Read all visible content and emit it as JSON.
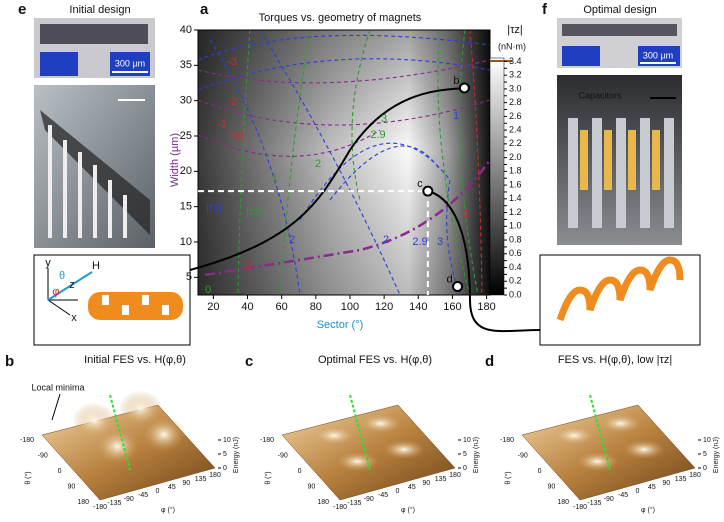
{
  "panel_labels": [
    "e",
    "a",
    "f",
    "b",
    "c",
    "d"
  ],
  "panel_e": {
    "title": "Initial design",
    "scale": "300 µm"
  },
  "panel_f": {
    "title": "Optimal design",
    "scale": "300 µm",
    "callout": "Capacitors"
  },
  "inset": {
    "axes": [
      "y",
      "θ",
      "H",
      "z",
      "φ",
      "x"
    ]
  },
  "chart_data": {
    "type": "contour",
    "title": "Torques vs. geometry of magnets",
    "xlabel": "Sector (°)",
    "ylabel": "Width (µm)",
    "xlim": [
      11,
      182
    ],
    "ylim": [
      2.5,
      40
    ],
    "xticks": [
      20,
      40,
      60,
      80,
      100,
      120,
      140,
      160,
      180
    ],
    "yticks": [
      5,
      10,
      15,
      20,
      25,
      30,
      35,
      40
    ],
    "colorbar": {
      "label": "|τz|",
      "unit": "(nN·m)",
      "lim": [
        0,
        3.45
      ],
      "ticks": [
        {
          "value": 0,
          "label": "0.0"
        },
        0.1,
        0.2,
        0.3,
        0.4,
        0.5,
        0.6,
        0.7,
        0.8,
        0.9,
        {
          "value": 1,
          "label": "1.0"
        },
        1.1,
        1.2,
        1.3,
        1.4,
        1.5,
        1.6,
        1.7,
        1.8,
        1.9,
        {
          "value": 2,
          "label": "2.0"
        },
        2.1,
        2.2,
        2.3,
        2.4,
        2.5,
        2.6,
        2.7,
        2.8,
        2.9,
        {
          "value": 3,
          "label": "3.0"
        },
        3.1,
        3.2,
        3.3,
        3.4
      ]
    },
    "torque_labels": [
      {
        "name": "|τx|",
        "color": "#2b3fd9"
      },
      {
        "name": "|τy|",
        "color": "#d12a2a"
      },
      {
        "name": "|τz|",
        "color": "#2f9a2f"
      }
    ],
    "contour_labels": [
      {
        "value": -3,
        "color": "#d12a2a"
      },
      {
        "value": -2,
        "color": "#d12a2a"
      },
      {
        "value": -1,
        "color": "#d12a2a"
      },
      {
        "value": 0,
        "color": "#d12a2a"
      },
      {
        "value": 1,
        "color": "#d12a2a"
      },
      {
        "value": 3,
        "color": "#2f9a2f"
      },
      {
        "value": 2.9,
        "color": "#2f9a2f"
      },
      {
        "value": 2,
        "color": "#2f9a2f"
      },
      {
        "value": 1,
        "color": "#2f9a2f"
      },
      {
        "value": 0,
        "color": "#2f9a2f"
      },
      {
        "value": 2,
        "color": "#2b3fd9"
      },
      {
        "value": 2,
        "color": "#2b3fd9"
      },
      {
        "value": 2.9,
        "color": "#2b3fd9"
      },
      {
        "value": 3,
        "color": "#2b3fd9"
      },
      {
        "value": 1,
        "color": "#2b3fd9"
      }
    ],
    "points": [
      {
        "label": "b",
        "x": 167,
        "y": 31.8
      },
      {
        "label": "c",
        "x": 145.6,
        "y": 17.2
      },
      {
        "label": "d",
        "x": 163,
        "y": 3.7
      }
    ]
  },
  "surfaces": [
    {
      "title": "Initial FES vs. H(φ,θ)",
      "annotation": "Local minima"
    },
    {
      "title": "Optimal FES vs. H(φ,θ)"
    },
    {
      "title": "FES vs. H(φ,θ), low |τz|"
    }
  ],
  "surface_axes": {
    "theta_label": "θ (°)",
    "phi_label": "φ (°)",
    "energy_label": "Energy (nJ)",
    "theta_ticks": [
      -180,
      -90,
      0,
      90,
      180
    ],
    "phi_ticks": [
      -180,
      -135,
      -90,
      -45,
      0,
      45,
      90,
      135,
      180
    ],
    "energy_ticks": [
      0,
      5,
      10
    ]
  }
}
